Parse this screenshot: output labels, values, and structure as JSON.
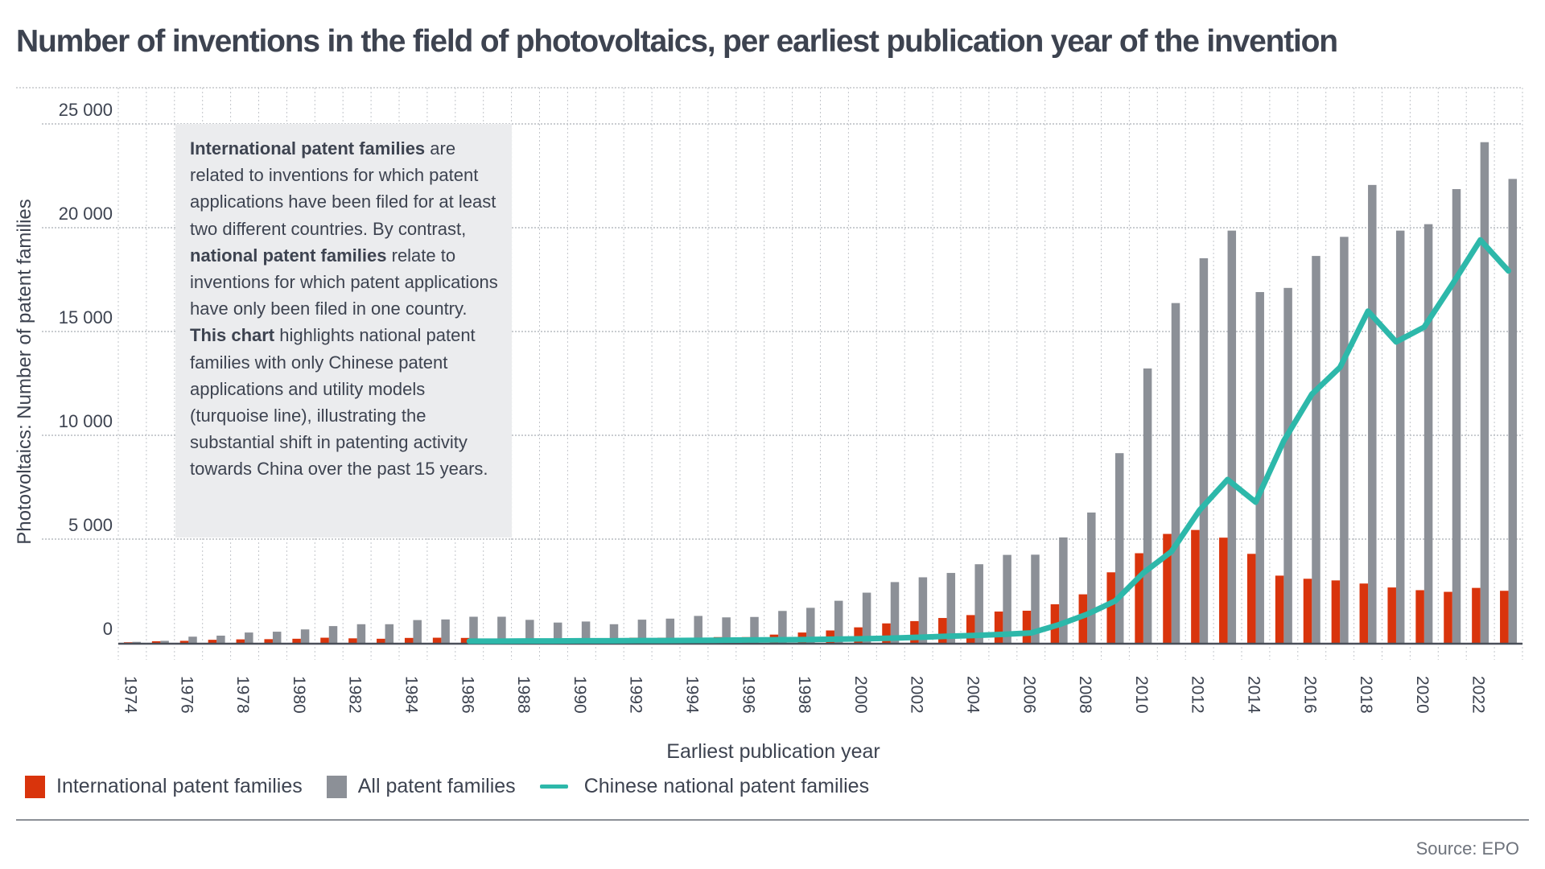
{
  "title": "Number of inventions in the field of photovoltaics, per earliest publication year of the invention",
  "annotation": {
    "segments": [
      {
        "text": "International patent families",
        "bold": true
      },
      {
        "text": " are related to inventions for which patent applications have been filed for at least two different countries. By contrast, ",
        "bold": false
      },
      {
        "text": "national patent families",
        "bold": true
      },
      {
        "text": " relate to inventions for which patent applications have only been filed in one country. ",
        "bold": false
      },
      {
        "text": "This chart",
        "bold": true
      },
      {
        "text": " highlights national patent families with only Chinese patent applications and utility models (turquoise line), illustrating the substantial shift in patenting activity towards China over the past 15 years.",
        "bold": false
      }
    ]
  },
  "legend": {
    "items": [
      {
        "label": "International patent families",
        "type": "bar",
        "color": "#d9340c"
      },
      {
        "label": "All patent families",
        "type": "bar",
        "color": "#8c9097"
      },
      {
        "label": "Chinese national patent families",
        "type": "line",
        "color": "#2db8aa"
      }
    ]
  },
  "source": "Source: EPO",
  "chart_data": {
    "type": "bar",
    "title": "Number of inventions in the field of photovoltaics, per earliest publication year of the invention",
    "xlabel": "Earliest publication year",
    "ylabel": "Photovoltaics: Number of patent families",
    "ylim": [
      0,
      25000
    ],
    "yticks": [
      0,
      5000,
      10000,
      15000,
      20000,
      25000
    ],
    "ytick_labels": [
      "0",
      "5 000",
      "10 000",
      "15 000",
      "20 000",
      "25 000"
    ],
    "xtick_labels": [
      "1974",
      "1976",
      "1978",
      "1980",
      "1982",
      "1984",
      "1986",
      "1988",
      "1990",
      "1992",
      "1994",
      "1996",
      "1998",
      "2000",
      "2002",
      "2004",
      "2006",
      "2008",
      "2010",
      "2012",
      "2014",
      "2016",
      "2018",
      "2020",
      "2022"
    ],
    "grid": true,
    "legend_position": "bottom-left",
    "categories": [
      1974,
      1975,
      1976,
      1977,
      1978,
      1979,
      1980,
      1981,
      1982,
      1983,
      1984,
      1985,
      1986,
      1987,
      1988,
      1989,
      1990,
      1991,
      1992,
      1993,
      1994,
      1995,
      1996,
      1997,
      1998,
      1999,
      2000,
      2001,
      2002,
      2003,
      2004,
      2005,
      2006,
      2007,
      2008,
      2009,
      2010,
      2011,
      2012,
      2013,
      2014,
      2015,
      2016,
      2017,
      2018,
      2019,
      2020,
      2021,
      2022,
      2023
    ],
    "series": [
      {
        "name": "International patent families",
        "type": "bar",
        "color": "#d9340c",
        "values": [
          30,
          80,
          100,
          150,
          170,
          180,
          200,
          250,
          220,
          200,
          240,
          250,
          240,
          80,
          30,
          30,
          30,
          30,
          250,
          250,
          250,
          280,
          280,
          400,
          500,
          600,
          750,
          940,
          1050,
          1200,
          1340,
          1510,
          1550,
          1860,
          2340,
          3400,
          4320,
          5250,
          5440,
          5070,
          4290,
          3240,
          3090,
          3010,
          2860,
          2670,
          2540,
          2460,
          2650,
          2510
        ]
      },
      {
        "name": "All patent families",
        "type": "bar",
        "color": "#8c9097",
        "values": [
          50,
          100,
          300,
          350,
          500,
          540,
          650,
          810,
          900,
          900,
          1100,
          1130,
          1260,
          1260,
          1110,
          980,
          1030,
          900,
          1120,
          1170,
          1300,
          1230,
          1250,
          1540,
          1690,
          2030,
          2420,
          2930,
          3160,
          3370,
          3790,
          4240,
          4250,
          5080,
          6280,
          9140,
          13220,
          16370,
          18530,
          19860,
          16900,
          17100,
          18640,
          19560,
          22060,
          19860,
          20170,
          21860,
          24120,
          22350
        ]
      },
      {
        "name": "Chinese national patent families",
        "type": "line",
        "color": "#2db8aa",
        "start_year": 1986,
        "values": [
          null,
          null,
          null,
          null,
          null,
          null,
          null,
          null,
          null,
          null,
          null,
          null,
          80,
          80,
          90,
          90,
          100,
          100,
          110,
          110,
          120,
          130,
          140,
          150,
          160,
          180,
          200,
          230,
          270,
          320,
          360,
          410,
          480,
          880,
          1380,
          2020,
          3370,
          4400,
          6390,
          7870,
          6780,
          9730,
          11980,
          13270,
          15980,
          14500,
          15210,
          17270,
          19410,
          17920
        ]
      }
    ]
  }
}
